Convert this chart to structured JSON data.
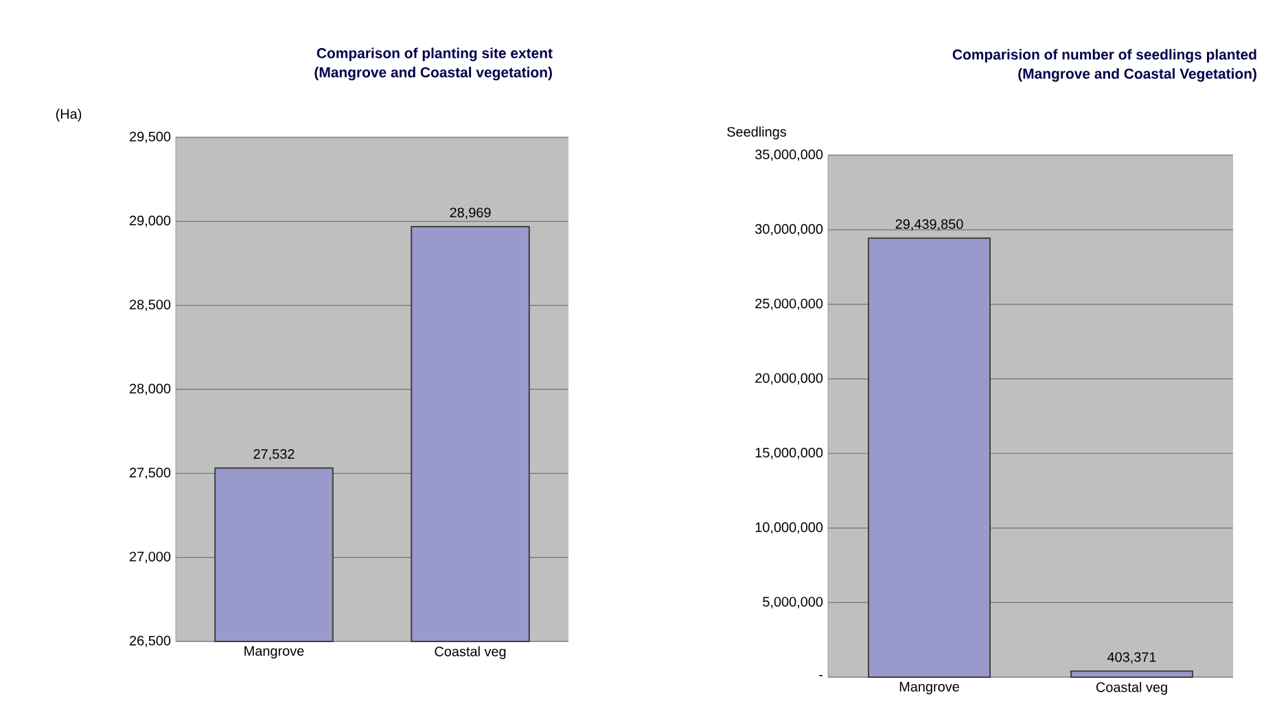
{
  "chart_data": [
    {
      "type": "bar",
      "title": "Comparison of planting site extent",
      "subtitle": "(Mangrove and Coastal vegetation)",
      "ylabel": "(Ha)",
      "categories": [
        "Mangrove",
        "Coastal veg"
      ],
      "values": [
        27532,
        28969
      ],
      "value_labels": [
        "27,532",
        "28,969"
      ],
      "color": "#9999cc",
      "ylim": [
        26500,
        29500
      ],
      "yticks": [
        {
          "value": 26500,
          "label": "26,500"
        },
        {
          "value": 27000,
          "label": "27,000"
        },
        {
          "value": 27500,
          "label": "27,500"
        },
        {
          "value": 28000,
          "label": "28,000"
        },
        {
          "value": 28500,
          "label": "28,500"
        },
        {
          "value": 29000,
          "label": "29,000"
        },
        {
          "value": 29500,
          "label": "29,500"
        }
      ],
      "grid": "y"
    },
    {
      "type": "bar",
      "title": "Comparision of number of seedlings planted",
      "subtitle": "(Mangrove and Coastal Vegetation)",
      "ylabel": "Seedlings",
      "categories": [
        "Mangrove",
        "Coastal veg"
      ],
      "values": [
        29439850,
        403371
      ],
      "value_labels": [
        "29,439,850",
        "403,371"
      ],
      "color": "#9999cc",
      "ylim": [
        0,
        35000000
      ],
      "yticks": [
        {
          "value": 0,
          "label": "-"
        },
        {
          "value": 5000000,
          "label": "5,000,000"
        },
        {
          "value": 10000000,
          "label": "10,000,000"
        },
        {
          "value": 15000000,
          "label": "15,000,000"
        },
        {
          "value": 20000000,
          "label": "20,000,000"
        },
        {
          "value": 25000000,
          "label": "25,000,000"
        },
        {
          "value": 30000000,
          "label": "30,000,000"
        },
        {
          "value": 35000000,
          "label": "35,000,000"
        }
      ],
      "grid": "y"
    }
  ]
}
